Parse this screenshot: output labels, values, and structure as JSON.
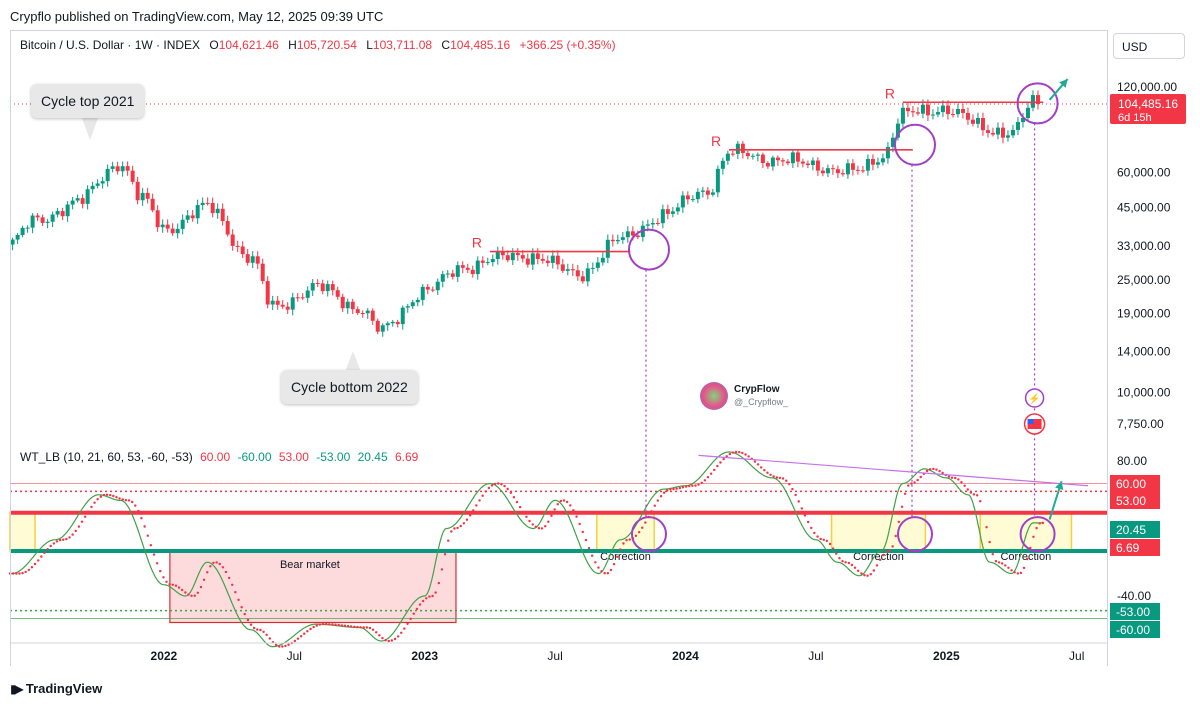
{
  "header": {
    "publisher": "Crypflo published on TradingView.com, May 12, 2025 09:39 UTC"
  },
  "legend": {
    "symbol": "Bitcoin / U.S. Dollar · 1W · INDEX",
    "open_label": "O",
    "open": "104,621.46",
    "high_label": "H",
    "high": "105,720.54",
    "low_label": "L",
    "low": "103,711.08",
    "close_label": "C",
    "close": "104,485.16",
    "change": "+366.25 (+0.35%)"
  },
  "currency": "USD",
  "indicator_legend": {
    "name": "WT_LB (10, 21, 60, 53, -60, -53)",
    "v1": "60.00",
    "v2": "-60.00",
    "v3": "53.00",
    "v4": "-53.00",
    "v5": "20.45",
    "v6": "6.69"
  },
  "footer": {
    "brand": "TradingView"
  },
  "watermark": {
    "name": "CrypFlow",
    "handle": "@_Crypflow_"
  },
  "annotations": {
    "cycle_top": "Cycle top 2021",
    "cycle_bottom": "Cycle bottom 2022",
    "bear_market": "Bear market",
    "correction": "Correction",
    "resistance": "R"
  },
  "price_badge": {
    "price": "104,485.16",
    "countdown": "6d 15h"
  },
  "colors": {
    "up": "#089981",
    "down": "#f23645",
    "accent": "#a13fc7",
    "wave_fast": "#43a047",
    "wave_slow": "#f23645",
    "arrow": "#22ab94"
  },
  "chart_data": [
    {
      "type": "candlestick",
      "title": "Bitcoin / U.S. Dollar · 1W · INDEX",
      "y_scale": "log",
      "y_ticks": [
        "120,000.00",
        "60,000.00",
        "45,000.00",
        "33,000.00",
        "25,000.00",
        "19,000.00",
        "14,000.00",
        "10,000.00",
        "7,750.00"
      ],
      "x_ticks": [
        "2022",
        "Jul",
        "2023",
        "Jul",
        "2024",
        "Jul",
        "2025",
        "Jul"
      ],
      "anchors": [
        {
          "date": "2021-06",
          "close": 34000
        },
        {
          "date": "2021-07",
          "close": 40000
        },
        {
          "date": "2021-09",
          "close": 47000
        },
        {
          "date": "2021-11",
          "close": 65000
        },
        {
          "date": "2021-12",
          "close": 48000
        },
        {
          "date": "2022-01",
          "close": 38000
        },
        {
          "date": "2022-03",
          "close": 45000
        },
        {
          "date": "2022-05",
          "close": 30000
        },
        {
          "date": "2022-06",
          "close": 20000
        },
        {
          "date": "2022-08",
          "close": 23500
        },
        {
          "date": "2022-10",
          "close": 20000
        },
        {
          "date": "2022-11",
          "close": 16500
        },
        {
          "date": "2023-01",
          "close": 23000
        },
        {
          "date": "2023-03",
          "close": 28000
        },
        {
          "date": "2023-04",
          "close": 29500
        },
        {
          "date": "2023-06",
          "close": 30500
        },
        {
          "date": "2023-08",
          "close": 26000
        },
        {
          "date": "2023-10",
          "close": 34500
        },
        {
          "date": "2023-12",
          "close": 42500
        },
        {
          "date": "2024-02",
          "close": 52000
        },
        {
          "date": "2024-03",
          "close": 70000
        },
        {
          "date": "2024-05",
          "close": 67000
        },
        {
          "date": "2024-07",
          "close": 63000
        },
        {
          "date": "2024-09",
          "close": 60000
        },
        {
          "date": "2024-10",
          "close": 68000
        },
        {
          "date": "2024-11",
          "close": 97000
        },
        {
          "date": "2024-12",
          "close": 96000
        },
        {
          "date": "2025-01",
          "close": 102000
        },
        {
          "date": "2025-03",
          "close": 83000
        },
        {
          "date": "2025-04",
          "close": 85000
        },
        {
          "date": "2025-05",
          "close": 104485
        }
      ],
      "resistance_levels": [
        {
          "label": "R",
          "price": 31500,
          "from": "2023-04",
          "to": "2023-10"
        },
        {
          "label": "R",
          "price": 72000,
          "from": "2024-03",
          "to": "2024-11"
        },
        {
          "label": "R",
          "price": 106000,
          "from": "2024-11",
          "to": "2025-05"
        }
      ],
      "last_price": 104485.16
    },
    {
      "type": "line",
      "title": "WT_LB (10, 21, 60, 53, -60, -53)",
      "y_ticks": [
        "80.00",
        "-40.00"
      ],
      "levels": [
        60,
        53,
        20.45,
        6.69,
        -53,
        -60
      ],
      "level_labels": [
        "60.00",
        "53.00",
        "20.45",
        "6.69",
        "-53.00",
        "-60.00"
      ],
      "series": [
        {
          "values_by_date": [
            {
              "date": "2021-06",
              "v": -20
            },
            {
              "date": "2021-08",
              "v": 10
            },
            {
              "date": "2021-10",
              "v": 50
            },
            {
              "date": "2021-11",
              "v": 45
            },
            {
              "date": "2022-01",
              "v": -30
            },
            {
              "date": "2022-02",
              "v": -40
            },
            {
              "date": "2022-03",
              "v": -10
            },
            {
              "date": "2022-05",
              "v": -70
            },
            {
              "date": "2022-06",
              "v": -85
            },
            {
              "date": "2022-08",
              "v": -65
            },
            {
              "date": "2022-10",
              "v": -68
            },
            {
              "date": "2022-11",
              "v": -80
            },
            {
              "date": "2023-01",
              "v": -40
            },
            {
              "date": "2023-02",
              "v": 20
            },
            {
              "date": "2023-04",
              "v": 60
            },
            {
              "date": "2023-06",
              "v": 20
            },
            {
              "date": "2023-07",
              "v": 45
            },
            {
              "date": "2023-09",
              "v": -20
            },
            {
              "date": "2023-10",
              "v": 10
            },
            {
              "date": "2023-12",
              "v": 55
            },
            {
              "date": "2024-01",
              "v": 58
            },
            {
              "date": "2024-03",
              "v": 88
            },
            {
              "date": "2024-05",
              "v": 65
            },
            {
              "date": "2024-07",
              "v": 10
            },
            {
              "date": "2024-08",
              "v": -10
            },
            {
              "date": "2024-09",
              "v": -22
            },
            {
              "date": "2024-10",
              "v": 0
            },
            {
              "date": "2024-11",
              "v": 60
            },
            {
              "date": "2024-12",
              "v": 73
            },
            {
              "date": "2025-01",
              "v": 65
            },
            {
              "date": "2025-02",
              "v": 50
            },
            {
              "date": "2025-03",
              "v": -10
            },
            {
              "date": "2025-04",
              "v": -20
            },
            {
              "date": "2025-05",
              "v": 25
            }
          ]
        }
      ]
    }
  ]
}
